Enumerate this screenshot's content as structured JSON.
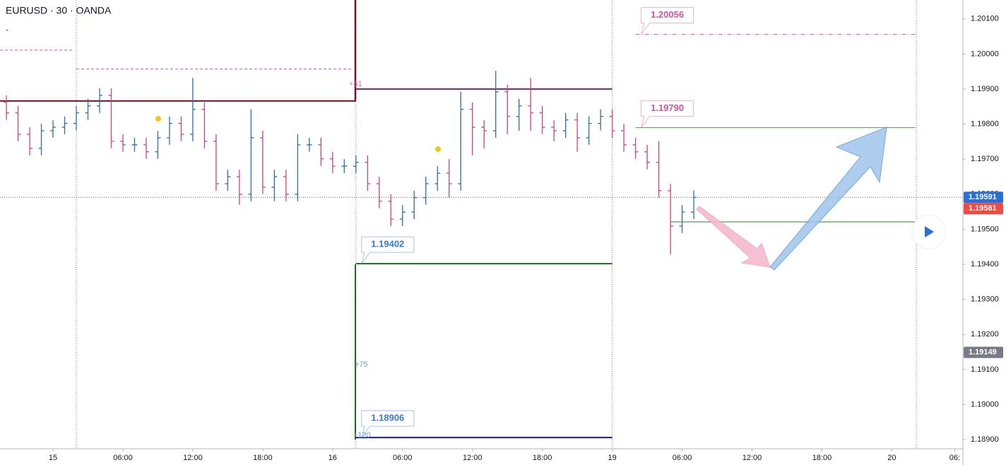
{
  "chart_data": {
    "type": "ohlc",
    "title": "EURUSD · 30 · OANDA",
    "subtitle": ".",
    "x": [
      -4,
      -3,
      -2,
      -1,
      0,
      1,
      2,
      3,
      4,
      5,
      6,
      7,
      8,
      9,
      10,
      11,
      12,
      13,
      14,
      15,
      16,
      17,
      18,
      19,
      20,
      21,
      22,
      23,
      24,
      25,
      26,
      27,
      28,
      29,
      30,
      31,
      32,
      33,
      34,
      35,
      36,
      37,
      38,
      39,
      40,
      41,
      42,
      43,
      44,
      45,
      46,
      47,
      48,
      49,
      50,
      51,
      52,
      53,
      54,
      55
    ],
    "open": [
      1.19862,
      1.19832,
      1.19771,
      1.19731,
      1.19781,
      1.19791,
      1.19802,
      1.19832,
      1.19852,
      1.19882,
      1.19751,
      1.19741,
      1.19741,
      1.19721,
      1.19761,
      1.19802,
      1.19771,
      1.19842,
      1.19751,
      1.1963,
      1.1965,
      1.196,
      1.19761,
      1.1962,
      1.1965,
      1.196,
      1.19741,
      1.19741,
      1.19701,
      1.1968,
      1.1968,
      1.19691,
      1.1963,
      1.1958,
      1.19529,
      1.19549,
      1.1959,
      1.1963,
      1.1966,
      1.1963,
      1.19842,
      1.19791,
      1.19781,
      1.19892,
      1.19822,
      1.19852,
      1.19832,
      1.19791,
      1.19781,
      1.19812,
      1.19761,
      1.19802,
      1.19822,
      1.19781,
      1.19741,
      1.19721,
      1.19691,
      1.1961,
      1.19509,
      1.19549
    ],
    "high": [
      1.19882,
      1.19852,
      1.19791,
      1.19801,
      1.19811,
      1.19822,
      1.19852,
      1.19872,
      1.19902,
      1.19902,
      1.19771,
      1.19761,
      1.19761,
      1.19781,
      1.19822,
      1.19822,
      1.19932,
      1.19862,
      1.19771,
      1.1967,
      1.1967,
      1.19842,
      1.19781,
      1.1967,
      1.1967,
      1.19771,
      1.19761,
      1.19761,
      1.19721,
      1.197,
      1.19711,
      1.19711,
      1.1965,
      1.196,
      1.19569,
      1.1961,
      1.1965,
      1.1968,
      1.197,
      1.19892,
      1.19862,
      1.19811,
      1.19952,
      1.19912,
      1.19872,
      1.19932,
      1.19852,
      1.19811,
      1.19832,
      1.19832,
      1.19822,
      1.19842,
      1.19842,
      1.19801,
      1.19761,
      1.19741,
      1.19751,
      1.1963,
      1.19569,
      1.19611
    ],
    "low": [
      1.19812,
      1.19751,
      1.19711,
      1.19711,
      1.19761,
      1.19771,
      1.19782,
      1.19812,
      1.19832,
      1.19731,
      1.19721,
      1.19721,
      1.19701,
      1.19701,
      1.19741,
      1.19751,
      1.19751,
      1.19731,
      1.1961,
      1.1961,
      1.1957,
      1.1958,
      1.196,
      1.1958,
      1.1958,
      1.1958,
      1.19721,
      1.19681,
      1.1966,
      1.1966,
      1.1966,
      1.1961,
      1.1956,
      1.19509,
      1.19509,
      1.19529,
      1.1957,
      1.1961,
      1.1959,
      1.1961,
      1.19711,
      1.19731,
      1.19761,
      1.19771,
      1.19781,
      1.19781,
      1.19771,
      1.19751,
      1.19761,
      1.19721,
      1.19741,
      1.19782,
      1.19761,
      1.19721,
      1.19701,
      1.19671,
      1.1959,
      1.19428,
      1.19489,
      1.19529
    ],
    "close": [
      1.19832,
      1.19771,
      1.19731,
      1.19781,
      1.19791,
      1.19802,
      1.19832,
      1.19852,
      1.19882,
      1.19751,
      1.19741,
      1.19741,
      1.19721,
      1.19761,
      1.19802,
      1.19771,
      1.19842,
      1.19751,
      1.1963,
      1.1965,
      1.196,
      1.19761,
      1.1962,
      1.1965,
      1.196,
      1.19741,
      1.19741,
      1.19701,
      1.1968,
      1.1968,
      1.19691,
      1.1963,
      1.1958,
      1.19529,
      1.19549,
      1.1959,
      1.1963,
      1.1966,
      1.1963,
      1.19842,
      1.19791,
      1.19781,
      1.19892,
      1.19822,
      1.19852,
      1.19832,
      1.19791,
      1.19781,
      1.19812,
      1.19761,
      1.19802,
      1.19822,
      1.19781,
      1.19741,
      1.19721,
      1.19691,
      1.1961,
      1.19509,
      1.19549,
      1.19591
    ],
    "up_color": "#2e6ea7",
    "down_color": "#c8467f",
    "xlim": [
      -4.55,
      78.1
    ],
    "xticks": [
      {
        "value": 0,
        "label": "15"
      },
      {
        "value": 6,
        "label": "06:00"
      },
      {
        "value": 12,
        "label": "12:00"
      },
      {
        "value": 18,
        "label": "18:00"
      },
      {
        "value": 24,
        "label": "16"
      },
      {
        "value": 30,
        "label": "06:00"
      },
      {
        "value": 36,
        "label": "12:00"
      },
      {
        "value": 42,
        "label": "18:00"
      },
      {
        "value": 48,
        "label": "19"
      },
      {
        "value": 54,
        "label": "06:00"
      },
      {
        "value": 60,
        "label": "12:00"
      },
      {
        "value": 66,
        "label": "18:00"
      },
      {
        "value": 72,
        "label": "20"
      },
      {
        "value": 77.4,
        "label": "06:"
      }
    ],
    "ylim": [
      1.18874,
      1.20154
    ],
    "yticks": [
      {
        "value": 1.201,
        "label": "1.20100"
      },
      {
        "value": 1.2,
        "label": "1.20000"
      },
      {
        "value": 1.199,
        "label": "1.19900"
      },
      {
        "value": 1.198,
        "label": "1.19800"
      },
      {
        "value": 1.197,
        "label": "1.19700"
      },
      {
        "value": 1.196,
        "label": "1.19600"
      },
      {
        "value": 1.195,
        "label": "1.19500"
      },
      {
        "value": 1.194,
        "label": "1.19400"
      },
      {
        "value": 1.193,
        "label": "1.19300"
      },
      {
        "value": 1.192,
        "label": "1.19200"
      },
      {
        "value": 1.191,
        "label": "1.19100"
      },
      {
        "value": 1.19,
        "label": "1.19000"
      },
      {
        "value": 1.189,
        "label": "1.18900"
      }
    ],
    "session_lines": [
      2,
      26,
      48,
      74.1
    ],
    "price_lines": [
      {
        "price": 1.20056,
        "from": 50,
        "to": 74,
        "color": "#d2559a",
        "style": "dashdot",
        "label": "1.20056",
        "label_color": "#d2559a"
      },
      {
        "price": 1.1979,
        "from": 50,
        "to": 74,
        "color": "#4a9a4a",
        "style": "solid",
        "label": "1.19790",
        "label_color": "#d2559a"
      },
      {
        "price": 1.19402,
        "from": 26,
        "to": 48,
        "color": "#1e6b1e",
        "style": "thick",
        "label": "1.19402",
        "label_color": "#3a7bd5"
      },
      {
        "price": 1.18906,
        "from": 26,
        "to": 48,
        "color": "#1a1a9c",
        "style": "thick",
        "label": "1.18906",
        "label_color": "#3a7bd5"
      },
      {
        "price": 1.19521,
        "from": 53,
        "to": 74,
        "color": "#2e7d32",
        "style": "solid"
      },
      {
        "price": 1.19866,
        "from": -4.55,
        "to": 26,
        "color": "#7b1020",
        "style": "thick"
      },
      {
        "price": 1.199,
        "from": 26,
        "to": 48,
        "color": "#9c1f7a",
        "style": "thick"
      },
      {
        "price": 1.20011,
        "from": -4.55,
        "to": 1.7,
        "color": "#d2559a",
        "style": "dash"
      },
      {
        "price": 1.19957,
        "from": 2,
        "to": 25.6,
        "color": "#d2559a",
        "style": "dash"
      }
    ],
    "notes": [
      {
        "text": "+51",
        "color": "#c77bb5"
      },
      {
        "text": "+75",
        "color": "#6a9bd8"
      },
      {
        "text": "+120",
        "color": "#6a9bd8"
      }
    ],
    "price_tags": [
      {
        "value": 1.19591,
        "label": "1.19591",
        "color": "#2a6fd6"
      },
      {
        "value": 1.19581,
        "label": "1.19581",
        "color": "#f04a43"
      },
      {
        "value": 1.19149,
        "label": "1.19149",
        "color": "#787b86"
      }
    ]
  }
}
